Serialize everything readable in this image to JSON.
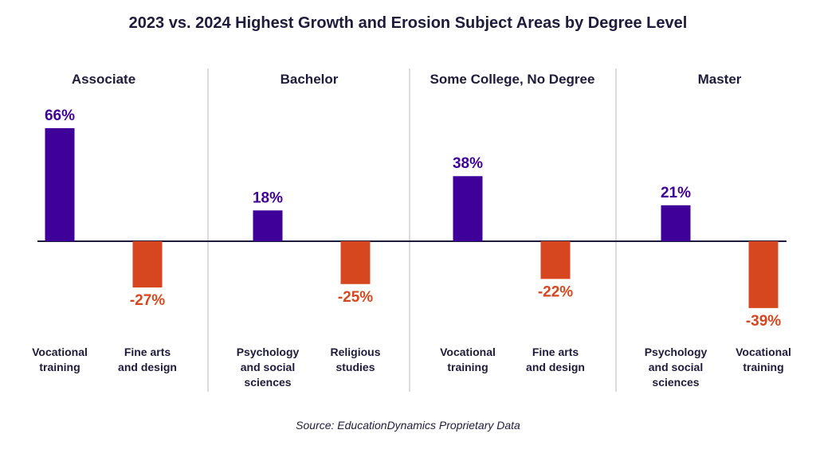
{
  "title": "2023 vs. 2024 Highest Growth and Erosion Subject Areas by Degree Level",
  "source": "Source: EducationDynamics Proprietary Data",
  "colors": {
    "growth": "#3f0099",
    "erosion": "#d6471f",
    "text": "#1f1b3a",
    "divider": "#dcdcdc",
    "baseline": "#1f1b3a"
  },
  "chart_data": {
    "type": "bar",
    "unit": "%",
    "ylim": [
      -45,
      70
    ],
    "groups": [
      {
        "name": "Associate",
        "bars": [
          {
            "label": [
              "Vocational",
              "training"
            ],
            "value": 66,
            "display": "66%"
          },
          {
            "label": [
              "Fine arts",
              "and design"
            ],
            "value": -27,
            "display": "-27%"
          }
        ]
      },
      {
        "name": "Bachelor",
        "bars": [
          {
            "label": [
              "Psychology",
              "and social",
              "sciences"
            ],
            "value": 18,
            "display": "18%"
          },
          {
            "label": [
              "Religious",
              "studies"
            ],
            "value": -25,
            "display": "-25%"
          }
        ]
      },
      {
        "name": "Some College, No Degree",
        "bars": [
          {
            "label": [
              "Vocational",
              "training"
            ],
            "value": 38,
            "display": "38%"
          },
          {
            "label": [
              "Fine arts",
              "and design"
            ],
            "value": -22,
            "display": "-22%"
          }
        ]
      },
      {
        "name": "Master",
        "bars": [
          {
            "label": [
              "Psychology",
              "and social",
              "sciences"
            ],
            "value": 21,
            "display": "21%"
          },
          {
            "label": [
              "Vocational",
              "training"
            ],
            "value": -39,
            "display": "-39%"
          }
        ]
      }
    ]
  }
}
